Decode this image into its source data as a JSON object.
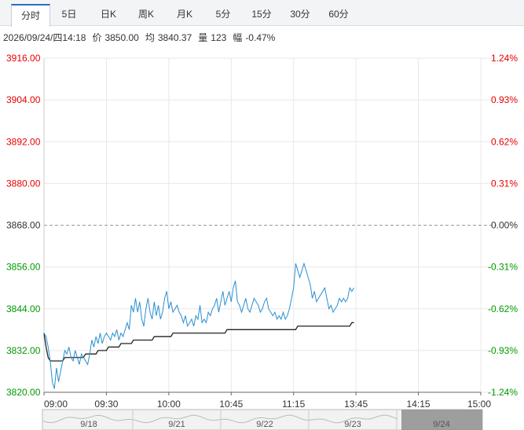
{
  "tabs": [
    {
      "label": "分时",
      "active": true
    },
    {
      "label": "5日",
      "active": false
    },
    {
      "label": "日K",
      "active": false
    },
    {
      "label": "周K",
      "active": false
    },
    {
      "label": "月K",
      "active": false
    },
    {
      "label": "5分",
      "active": false
    },
    {
      "label": "15分",
      "active": false
    },
    {
      "label": "30分",
      "active": false
    },
    {
      "label": "60分",
      "active": false
    }
  ],
  "info": {
    "datetime": "2026/09/24/四14:18",
    "price_label": "价",
    "price": "3850.00",
    "avg_label": "均",
    "avg": "3840.37",
    "vol_label": "量",
    "vol": "123",
    "chg_label": "幅",
    "chg": "-0.47%"
  },
  "colors": {
    "up": "#e60000",
    "down": "#009900",
    "flat": "#333333",
    "price_line": "#2a8fd0",
    "avg_line": "#222222",
    "grid": "#e8e8e8",
    "nav_bg": "#f2f2f2",
    "nav_window": "#8f8f8f"
  },
  "chart_data": {
    "type": "line",
    "prev_close": 3868.0,
    "ylim": [
      3820.0,
      3916.0
    ],
    "left_ticks": [
      "3916.00",
      "3904.00",
      "3892.00",
      "3880.00",
      "3868.00",
      "3856.00",
      "3844.00",
      "3832.00",
      "3820.00"
    ],
    "right_ticks": [
      "1.24%",
      "0.93%",
      "0.62%",
      "0.31%",
      "0.00%",
      "-0.31%",
      "-0.62%",
      "-0.93%",
      "-1.24%"
    ],
    "x_ticks": [
      "09:00",
      "09:30",
      "10:00",
      "10:45",
      "11:15",
      "13:45",
      "14:15",
      "15:00"
    ],
    "x_tick_index": [
      0,
      30,
      60,
      90,
      120,
      150,
      180,
      210
    ],
    "total_minutes": 210,
    "series": [
      {
        "key": "price",
        "values": [
          3837,
          3836,
          3833,
          3829,
          3823,
          3821,
          3827,
          3823,
          3826,
          3829,
          3832,
          3831,
          3833,
          3830,
          3829,
          3832,
          3830,
          3828,
          3831,
          3830,
          3829,
          3828,
          3831,
          3835,
          3833,
          3836,
          3834,
          3837,
          3834,
          3836,
          3837,
          3836,
          3835,
          3837,
          3836,
          3838,
          3835,
          3837,
          3836,
          3838,
          3840,
          3838,
          3845,
          3843,
          3847,
          3843,
          3846,
          3841,
          3839,
          3844,
          3847,
          3843,
          3841,
          3846,
          3842,
          3845,
          3841,
          3843,
          3847,
          3849,
          3844,
          3846,
          3843,
          3844,
          3845,
          3843,
          3842,
          3840,
          3842,
          3839,
          3840,
          3841,
          3839,
          3842,
          3841,
          3845,
          3840,
          3841,
          3840,
          3843,
          3842,
          3844,
          3845,
          3847,
          3843,
          3846,
          3849,
          3845,
          3847,
          3849,
          3846,
          3850,
          3852,
          3846,
          3845,
          3843,
          3845,
          3847,
          3844,
          3843,
          3845,
          3847,
          3846,
          3845,
          3843,
          3844,
          3846,
          3847,
          3844,
          3843,
          3842,
          3843,
          3841,
          3842,
          3841,
          3843,
          3841,
          3842,
          3844,
          3847,
          3850,
          3857,
          3855,
          3853,
          3855,
          3857,
          3855,
          3853,
          3851,
          3847,
          3849,
          3846,
          3847,
          3848,
          3849,
          3850,
          3847,
          3844,
          3845,
          3843,
          3844,
          3845,
          3847,
          3846,
          3847,
          3846,
          3847,
          3850,
          3849,
          3850
        ],
        "price_start_minute": 0
      },
      {
        "key": "avg",
        "values": [
          3837,
          3833,
          3830,
          3829,
          3829,
          3829,
          3829,
          3829,
          3829,
          3829,
          3830,
          3830,
          3830,
          3830,
          3830,
          3830,
          3830,
          3830,
          3830,
          3830,
          3831,
          3831,
          3831,
          3831,
          3831,
          3831,
          3832,
          3832,
          3832,
          3832,
          3832,
          3833,
          3833,
          3833,
          3833,
          3833,
          3833,
          3834,
          3834,
          3834,
          3834,
          3834,
          3834,
          3835,
          3835,
          3835,
          3835,
          3835,
          3835,
          3835,
          3835,
          3835,
          3835,
          3836,
          3836,
          3836,
          3836,
          3836,
          3836,
          3836,
          3836,
          3836,
          3837,
          3837,
          3837,
          3837,
          3837,
          3837,
          3837,
          3837,
          3837,
          3837,
          3837,
          3837,
          3837,
          3837,
          3837,
          3837,
          3837,
          3837,
          3837,
          3837,
          3837,
          3837,
          3837,
          3837,
          3837,
          3837,
          3838,
          3838,
          3838,
          3838,
          3838,
          3838,
          3838,
          3838,
          3838,
          3838,
          3838,
          3838,
          3838,
          3838,
          3838,
          3838,
          3838,
          3838,
          3838,
          3838,
          3838,
          3838,
          3838,
          3838,
          3838,
          3838,
          3838,
          3838,
          3838,
          3838,
          3838,
          3838,
          3838,
          3838,
          3839,
          3839,
          3839,
          3839,
          3839,
          3839,
          3839,
          3839,
          3839,
          3839,
          3839,
          3839,
          3839,
          3839,
          3839,
          3839,
          3839,
          3839,
          3839,
          3839,
          3839,
          3839,
          3839,
          3839,
          3839,
          3839,
          3840,
          3840
        ]
      }
    ],
    "navigator": {
      "labels": [
        "9/18",
        "9/21",
        "9/22",
        "9/23",
        "9/24"
      ],
      "window_label": "9/24"
    }
  }
}
